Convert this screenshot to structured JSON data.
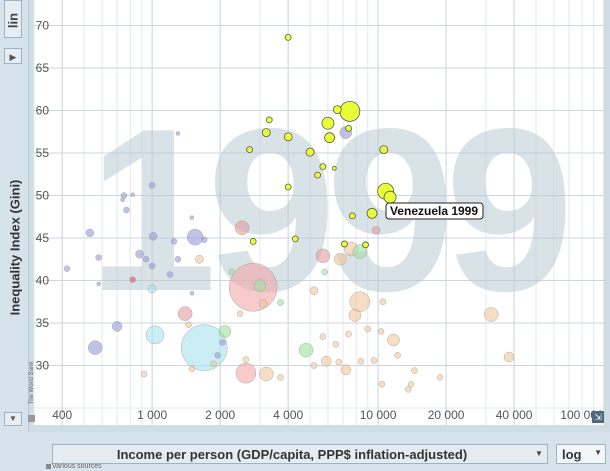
{
  "y_scale_label": "lin",
  "x_scale_label": "log",
  "watermark_year": "1999",
  "sources_text": "Various sources",
  "brand_text": "The World Bank",
  "chart_data": {
    "type": "scatter",
    "xlabel": "Income per person (GDP/capita, PPP$ inflation-adjusted)",
    "ylabel": "Inequality Index (Gini)",
    "x_scale": "log",
    "xlim": [
      300,
      100000
    ],
    "ylim": [
      23,
      73
    ],
    "x_ticks": [
      400,
      1000,
      2000,
      4000,
      10000,
      20000,
      40000,
      100000
    ],
    "x_tick_labels": [
      "400",
      "1 000",
      "2 000",
      "4 000",
      "10 000",
      "20 000",
      "40 000",
      "100 000"
    ],
    "y_ticks": [
      30,
      35,
      40,
      45,
      50,
      55,
      60,
      65,
      70
    ],
    "y_tick_labels": [
      "30",
      "35",
      "40",
      "45",
      "50",
      "55",
      "60",
      "65",
      "70"
    ],
    "grid": true,
    "annotation": {
      "text": "Venezuela 1999",
      "x": 9400,
      "y": 45.9
    },
    "series_colors": {
      "africa": "#e3ff00",
      "asia": "#6e6ee8",
      "europe": "#f7a872",
      "americas": "#e8f06a",
      "middle_east": "#6fe06f",
      "south_asia": "#5ec8e8"
    },
    "points": [
      {
        "x": 4000,
        "y": 68.6,
        "r": 3,
        "c": "#e8ff38"
      },
      {
        "x": 7500,
        "y": 59.9,
        "r": 10,
        "c": "#e8ff38"
      },
      {
        "x": 6600,
        "y": 60.1,
        "r": 4,
        "c": "#e8ff38"
      },
      {
        "x": 6000,
        "y": 58.5,
        "r": 6,
        "c": "#e8ff38"
      },
      {
        "x": 7200,
        "y": 57.4,
        "r": 6,
        "c": "#9a9ad8"
      },
      {
        "x": 7400,
        "y": 57.9,
        "r": 3,
        "c": "#e8ff38"
      },
      {
        "x": 3300,
        "y": 58.9,
        "r": 3,
        "c": "#e8ff38"
      },
      {
        "x": 3200,
        "y": 57.4,
        "r": 4,
        "c": "#e8ff38"
      },
      {
        "x": 2700,
        "y": 55.4,
        "r": 3,
        "c": "#e8ff38"
      },
      {
        "x": 4000,
        "y": 56.9,
        "r": 4,
        "c": "#e8ff38"
      },
      {
        "x": 6100,
        "y": 56.8,
        "r": 5,
        "c": "#e8ff38"
      },
      {
        "x": 5000,
        "y": 55.1,
        "r": 4,
        "c": "#e8ff38"
      },
      {
        "x": 5700,
        "y": 53.4,
        "r": 3,
        "c": "#e8ff38"
      },
      {
        "x": 5400,
        "y": 52.4,
        "r": 3,
        "c": "#e8ff38"
      },
      {
        "x": 6400,
        "y": 53.2,
        "r": 2,
        "c": "#e8ff38"
      },
      {
        "x": 10600,
        "y": 55.4,
        "r": 4,
        "c": "#e8ff38"
      },
      {
        "x": 10800,
        "y": 50.5,
        "r": 8,
        "c": "#e8ff38"
      },
      {
        "x": 11300,
        "y": 49.8,
        "r": 6,
        "c": "#e8ff38"
      },
      {
        "x": 4000,
        "y": 51.0,
        "r": 3,
        "c": "#e8ff38"
      },
      {
        "x": 7700,
        "y": 47.6,
        "r": 3,
        "c": "#e8ff38"
      },
      {
        "x": 9400,
        "y": 47.9,
        "r": 5,
        "c": "#e8ff38"
      },
      {
        "x": 8800,
        "y": 44.2,
        "r": 3,
        "c": "#e8ff38"
      },
      {
        "x": 7100,
        "y": 44.3,
        "r": 3,
        "c": "#e8ff38"
      },
      {
        "x": 9800,
        "y": 45.9,
        "r": 4,
        "c": "#e39da0"
      },
      {
        "x": 4300,
        "y": 44.9,
        "r": 3,
        "c": "#e8ff38"
      },
      {
        "x": 2800,
        "y": 44.6,
        "r": 3,
        "c": "#e8ff38"
      },
      {
        "x": 1500,
        "y": 47.4,
        "r": 2,
        "c": "#9a9ad8"
      },
      {
        "x": 1300,
        "y": 57.3,
        "r": 2,
        "c": "#9a9ad8"
      },
      {
        "x": 1000,
        "y": 51.2,
        "r": 3,
        "c": "#9a9ad8"
      },
      {
        "x": 750,
        "y": 50.0,
        "r": 3,
        "c": "#9a9ad8"
      },
      {
        "x": 820,
        "y": 50.1,
        "r": 2,
        "c": "#9a9ad8"
      },
      {
        "x": 740,
        "y": 49.5,
        "r": 2,
        "c": "#9a9ad8"
      },
      {
        "x": 770,
        "y": 48.3,
        "r": 3,
        "c": "#9a9ad8"
      },
      {
        "x": 530,
        "y": 45.6,
        "r": 4,
        "c": "#9a9ad8"
      },
      {
        "x": 1010,
        "y": 45.2,
        "r": 4,
        "c": "#9a9ad8"
      },
      {
        "x": 1550,
        "y": 45.1,
        "r": 8,
        "c": "#9a9ad8"
      },
      {
        "x": 1250,
        "y": 44.6,
        "r": 3,
        "c": "#9a9ad8"
      },
      {
        "x": 1700,
        "y": 44.8,
        "r": 3,
        "c": "#9a9ad8"
      },
      {
        "x": 880,
        "y": 43.1,
        "r": 4,
        "c": "#9a9ad8"
      },
      {
        "x": 940,
        "y": 42.5,
        "r": 3,
        "c": "#9a9ad8"
      },
      {
        "x": 1000,
        "y": 41.7,
        "r": 3,
        "c": "#9a9ad8"
      },
      {
        "x": 1300,
        "y": 42.5,
        "r": 3,
        "c": "#9a9ad8"
      },
      {
        "x": 1200,
        "y": 40.7,
        "r": 3,
        "c": "#9a9ad8"
      },
      {
        "x": 580,
        "y": 42.7,
        "r": 3,
        "c": "#9a9ad8"
      },
      {
        "x": 420,
        "y": 41.4,
        "r": 3,
        "c": "#9a9ad8"
      },
      {
        "x": 580,
        "y": 39.6,
        "r": 2,
        "c": "#9a9ad8"
      },
      {
        "x": 820,
        "y": 40.1,
        "r": 3,
        "c": "#e05a5a"
      },
      {
        "x": 1000,
        "y": 39.0,
        "r": 4,
        "c": "#a8e2ee"
      },
      {
        "x": 1500,
        "y": 38.5,
        "r": 2,
        "c": "#9a9ad8"
      },
      {
        "x": 1620,
        "y": 42.5,
        "r": 4,
        "c": "#f0c69d"
      },
      {
        "x": 2500,
        "y": 46.2,
        "r": 7,
        "c": "#e39da0"
      },
      {
        "x": 2800,
        "y": 39.2,
        "r": 24,
        "c": "#f2a8a8"
      },
      {
        "x": 2250,
        "y": 41.0,
        "r": 3,
        "c": "#9de29d"
      },
      {
        "x": 2450,
        "y": 36.1,
        "r": 3,
        "c": "#f0c69d"
      },
      {
        "x": 3000,
        "y": 39.4,
        "r": 6,
        "c": "#9de29d"
      },
      {
        "x": 3100,
        "y": 37.3,
        "r": 4,
        "c": "#f0c69d"
      },
      {
        "x": 3700,
        "y": 37.4,
        "r": 3,
        "c": "#9de29d"
      },
      {
        "x": 5700,
        "y": 42.9,
        "r": 7,
        "c": "#e39da0"
      },
      {
        "x": 7600,
        "y": 43.7,
        "r": 7,
        "c": "#f0c69d"
      },
      {
        "x": 8300,
        "y": 43.4,
        "r": 7,
        "c": "#9de29d"
      },
      {
        "x": 6800,
        "y": 42.5,
        "r": 6,
        "c": "#f0c69d"
      },
      {
        "x": 5800,
        "y": 41.0,
        "r": 3,
        "c": "#9de29d"
      },
      {
        "x": 5200,
        "y": 38.8,
        "r": 4,
        "c": "#f0c69d"
      },
      {
        "x": 8300,
        "y": 37.5,
        "r": 10,
        "c": "#f0c69d"
      },
      {
        "x": 10500,
        "y": 37.5,
        "r": 3,
        "c": "#f0c69d"
      },
      {
        "x": 7900,
        "y": 35.9,
        "r": 6,
        "c": "#f0c69d"
      },
      {
        "x": 7400,
        "y": 33.7,
        "r": 3,
        "c": "#f0c69d"
      },
      {
        "x": 9000,
        "y": 34.3,
        "r": 3,
        "c": "#f0c69d"
      },
      {
        "x": 10300,
        "y": 34.0,
        "r": 3,
        "c": "#f0c69d"
      },
      {
        "x": 11700,
        "y": 33.0,
        "r": 6,
        "c": "#f0c69d"
      },
      {
        "x": 5700,
        "y": 33.4,
        "r": 3,
        "c": "#f0c69d"
      },
      {
        "x": 6500,
        "y": 32.5,
        "r": 3,
        "c": "#f0c69d"
      },
      {
        "x": 4800,
        "y": 31.8,
        "r": 7,
        "c": "#9de29d"
      },
      {
        "x": 5200,
        "y": 30.0,
        "r": 3,
        "c": "#f0c69d"
      },
      {
        "x": 5900,
        "y": 30.5,
        "r": 5,
        "c": "#f0c69d"
      },
      {
        "x": 6700,
        "y": 30.4,
        "r": 3,
        "c": "#f0c69d"
      },
      {
        "x": 7200,
        "y": 29.5,
        "r": 5,
        "c": "#f0c69d"
      },
      {
        "x": 8400,
        "y": 30.5,
        "r": 3,
        "c": "#f0c69d"
      },
      {
        "x": 9600,
        "y": 30.6,
        "r": 3,
        "c": "#f0c69d"
      },
      {
        "x": 12200,
        "y": 31.2,
        "r": 3,
        "c": "#f0c69d"
      },
      {
        "x": 14500,
        "y": 29.4,
        "r": 3,
        "c": "#f0c69d"
      },
      {
        "x": 10400,
        "y": 27.8,
        "r": 3,
        "c": "#f0c69d"
      },
      {
        "x": 13600,
        "y": 27.2,
        "r": 3,
        "c": "#f0c69d"
      },
      {
        "x": 14000,
        "y": 27.8,
        "r": 3,
        "c": "#f0c69d"
      },
      {
        "x": 18800,
        "y": 28.6,
        "r": 3,
        "c": "#f0c69d"
      },
      {
        "x": 31700,
        "y": 36.0,
        "r": 7,
        "c": "#f0c69d"
      },
      {
        "x": 38000,
        "y": 31.0,
        "r": 5,
        "c": "#f0c69d"
      },
      {
        "x": 3200,
        "y": 29.0,
        "r": 7,
        "c": "#f0c69d"
      },
      {
        "x": 3700,
        "y": 28.6,
        "r": 3,
        "c": "#f0c69d"
      },
      {
        "x": 2600,
        "y": 29.1,
        "r": 10,
        "c": "#f2a8a8"
      },
      {
        "x": 2100,
        "y": 34.0,
        "r": 6,
        "c": "#9de29d"
      },
      {
        "x": 2050,
        "y": 32.7,
        "r": 3,
        "c": "#9a9ad8"
      },
      {
        "x": 1400,
        "y": 36.1,
        "r": 7,
        "c": "#e39da0"
      },
      {
        "x": 1450,
        "y": 34.8,
        "r": 3,
        "c": "#f0c69d"
      },
      {
        "x": 1030,
        "y": 33.6,
        "r": 9,
        "c": "#a8e2ee"
      },
      {
        "x": 700,
        "y": 34.6,
        "r": 5,
        "c": "#9a9ad8"
      },
      {
        "x": 560,
        "y": 32.1,
        "r": 7,
        "c": "#9a9ad8"
      },
      {
        "x": 1700,
        "y": 32.1,
        "r": 23,
        "c": "#a8e2ee"
      },
      {
        "x": 1870,
        "y": 30.2,
        "r": 3,
        "c": "#f0c69d"
      },
      {
        "x": 1950,
        "y": 31.2,
        "r": 3,
        "c": "#9a9ad8"
      },
      {
        "x": 2600,
        "y": 30.7,
        "r": 3,
        "c": "#f0c69d"
      },
      {
        "x": 920,
        "y": 29.0,
        "r": 3,
        "c": "#f0c69d"
      },
      {
        "x": 1500,
        "y": 29.6,
        "r": 3,
        "c": "#f0c69d"
      }
    ]
  }
}
